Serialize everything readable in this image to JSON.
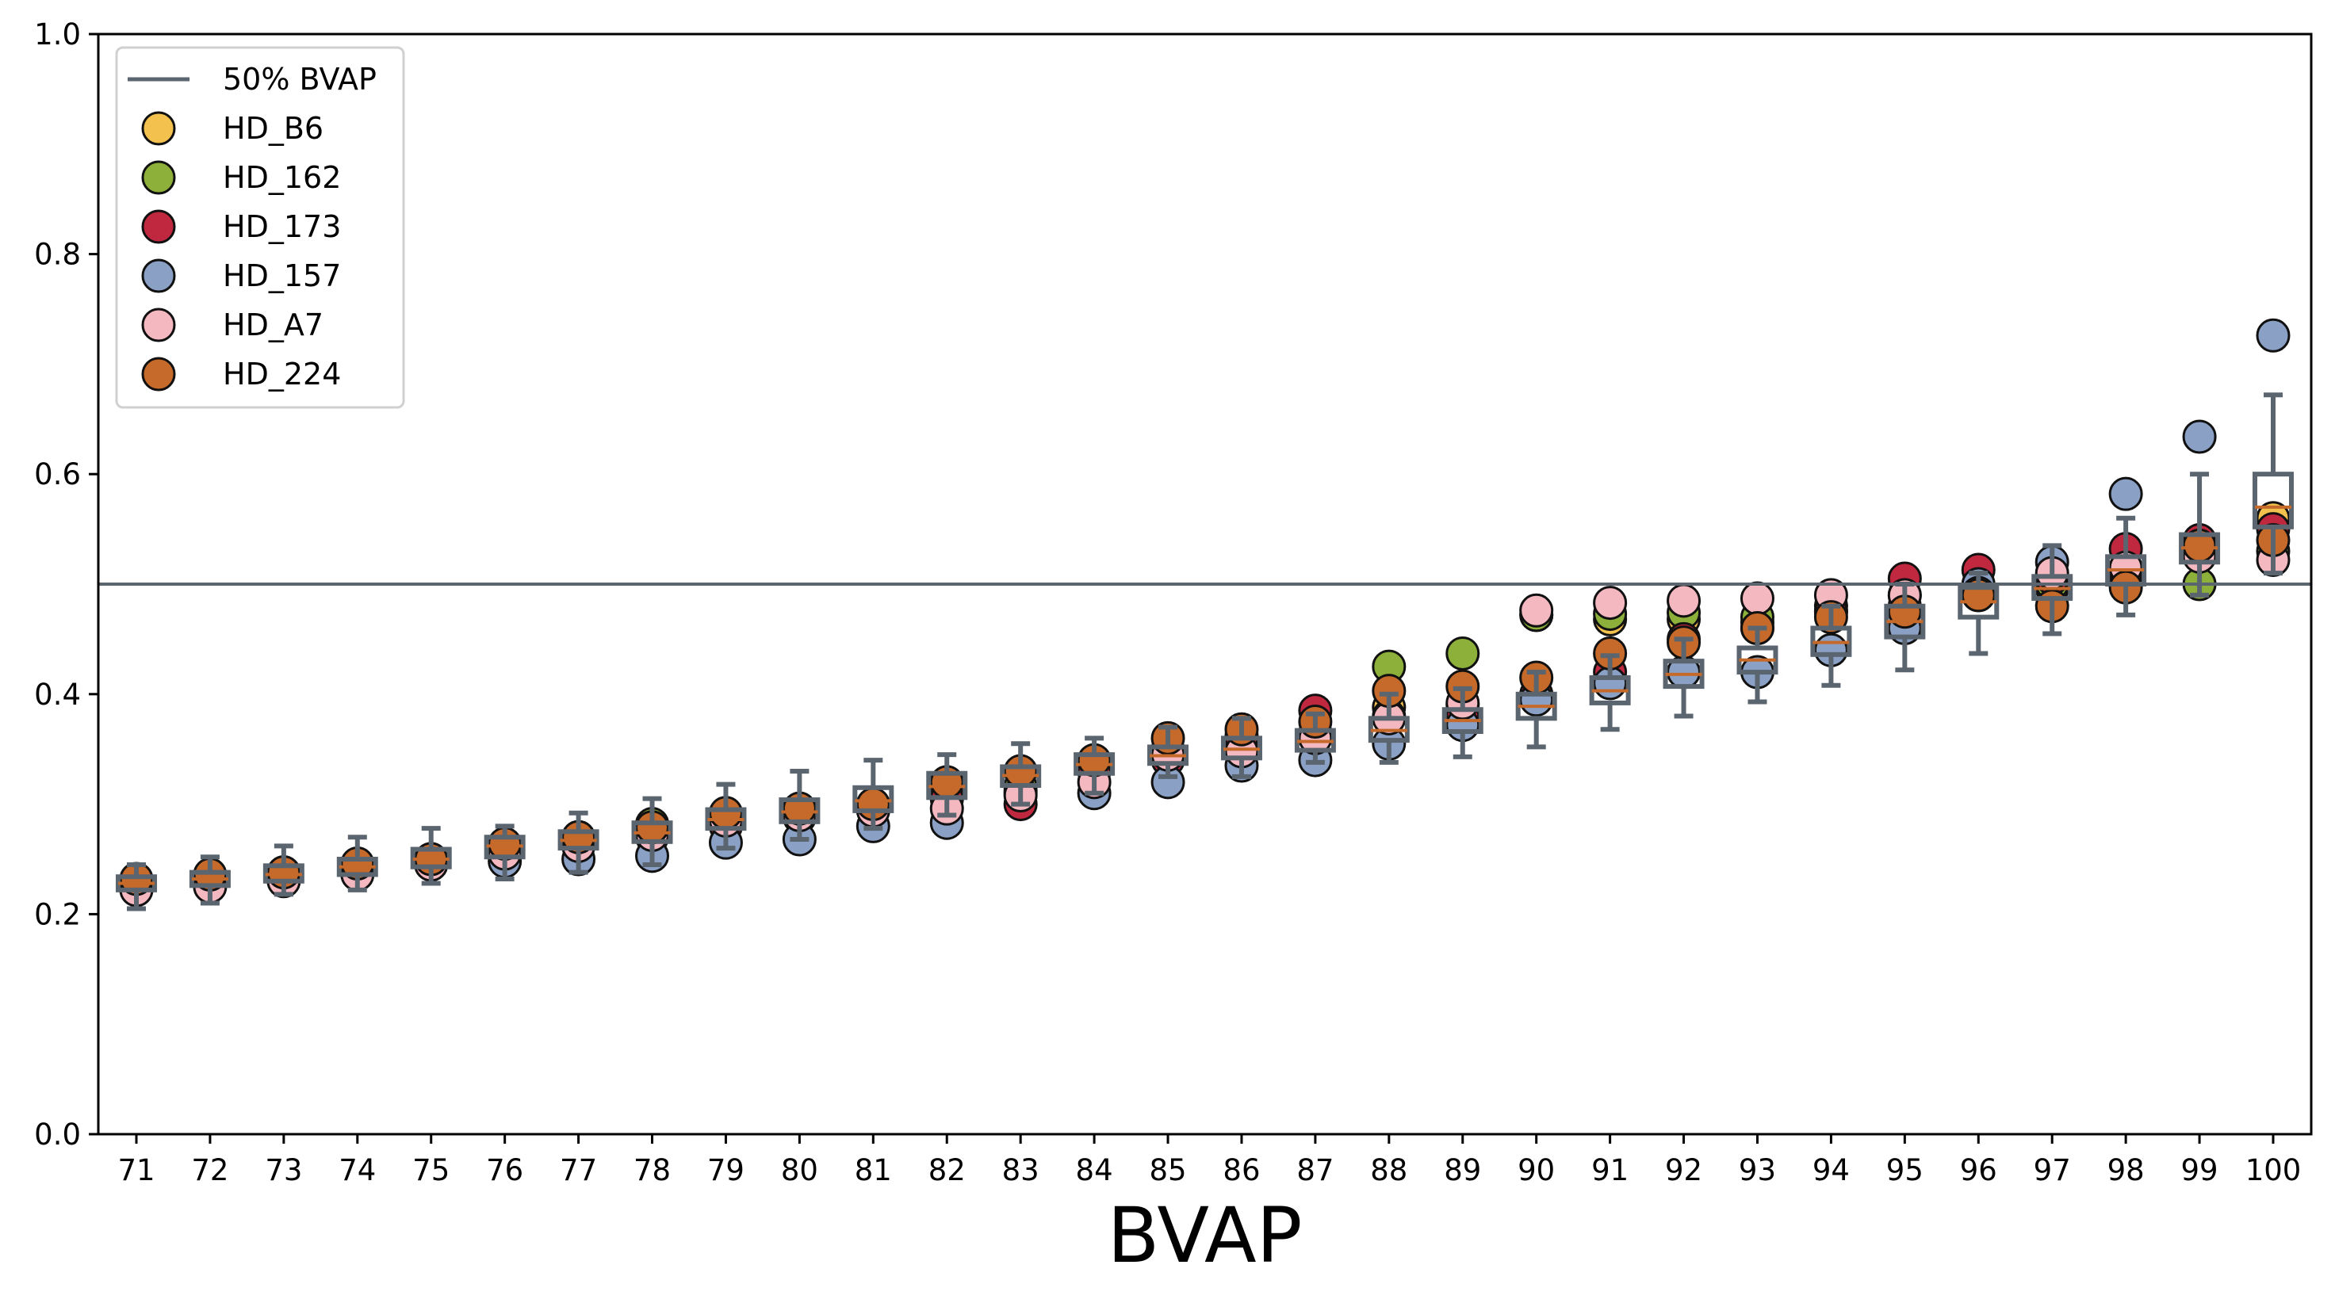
{
  "chart_data": {
    "type": "scatter",
    "title": "",
    "xlabel": "BVAP",
    "ylabel": "",
    "ylim": [
      0.0,
      1.0
    ],
    "yticks": [
      "0.0",
      "0.2",
      "0.4",
      "0.6",
      "0.8",
      "1.0"
    ],
    "categories": [
      "71",
      "72",
      "73",
      "74",
      "75",
      "76",
      "77",
      "78",
      "79",
      "80",
      "81",
      "82",
      "83",
      "84",
      "85",
      "86",
      "87",
      "88",
      "89",
      "90",
      "91",
      "92",
      "93",
      "94",
      "95",
      "96",
      "97",
      "98",
      "99",
      "100"
    ],
    "reference_line": {
      "label": "50% BVAP",
      "y": 0.5,
      "color": "#5b6570"
    },
    "legend_position": "upper-left",
    "grid": false,
    "series": [
      {
        "name": "HD_B6",
        "color": "#f2c14e",
        "values": [
          0.23,
          0.232,
          0.238,
          0.245,
          0.25,
          0.26,
          0.268,
          0.274,
          0.285,
          0.292,
          0.298,
          0.31,
          0.312,
          0.33,
          0.345,
          0.355,
          0.365,
          0.388,
          0.39,
          0.472,
          0.468,
          0.468,
          0.465,
          0.475,
          0.49,
          0.49,
          0.496,
          0.505,
          0.53,
          0.56
        ]
      },
      {
        "name": "HD_162",
        "color": "#8db03b",
        "values": [
          0.229,
          0.231,
          0.235,
          0.243,
          0.248,
          0.262,
          0.27,
          0.282,
          0.288,
          0.29,
          0.296,
          0.31,
          0.316,
          0.335,
          0.35,
          0.362,
          0.362,
          0.425,
          0.437,
          0.472,
          0.473,
          0.474,
          0.47,
          0.48,
          0.48,
          0.493,
          0.5,
          0.51,
          0.5,
          0.53
        ]
      },
      {
        "name": "HD_173",
        "color": "#c0283f",
        "values": [
          0.228,
          0.23,
          0.234,
          0.24,
          0.247,
          0.258,
          0.265,
          0.27,
          0.28,
          0.288,
          0.295,
          0.305,
          0.3,
          0.33,
          0.34,
          0.36,
          0.385,
          0.38,
          0.38,
          0.4,
          0.42,
          0.45,
          0.46,
          0.475,
          0.505,
          0.513,
          0.505,
          0.532,
          0.54,
          0.55
        ]
      },
      {
        "name": "HD_157",
        "color": "#8aa0c4",
        "values": [
          0.228,
          0.232,
          0.236,
          0.242,
          0.25,
          0.248,
          0.25,
          0.253,
          0.265,
          0.268,
          0.28,
          0.283,
          0.31,
          0.31,
          0.32,
          0.335,
          0.34,
          0.355,
          0.372,
          0.395,
          0.41,
          0.42,
          0.42,
          0.44,
          0.46,
          0.5,
          0.52,
          0.582,
          0.634,
          0.726
        ]
      },
      {
        "name": "HD_A7",
        "color": "#f4b8c0",
        "values": [
          0.222,
          0.225,
          0.23,
          0.236,
          0.245,
          0.255,
          0.262,
          0.272,
          0.285,
          0.29,
          0.294,
          0.296,
          0.308,
          0.32,
          0.345,
          0.348,
          0.36,
          0.378,
          0.392,
          0.476,
          0.483,
          0.485,
          0.487,
          0.49,
          0.49,
          0.492,
          0.51,
          0.515,
          0.525,
          0.522
        ]
      },
      {
        "name": "HD_224",
        "color": "#c56a2a",
        "values": [
          0.232,
          0.236,
          0.238,
          0.246,
          0.25,
          0.264,
          0.27,
          0.279,
          0.292,
          0.296,
          0.3,
          0.32,
          0.33,
          0.34,
          0.36,
          0.368,
          0.375,
          0.403,
          0.407,
          0.415,
          0.437,
          0.447,
          0.46,
          0.47,
          0.475,
          0.49,
          0.48,
          0.497,
          0.535,
          0.54
        ]
      }
    ],
    "boxplots": {
      "color": "#5b6570",
      "boxes": [
        {
          "whislo": 0.205,
          "q1": 0.222,
          "med": 0.228,
          "q3": 0.234,
          "whishi": 0.245
        },
        {
          "whislo": 0.21,
          "q1": 0.226,
          "med": 0.232,
          "q3": 0.238,
          "whishi": 0.252
        },
        {
          "whislo": 0.218,
          "q1": 0.23,
          "med": 0.236,
          "q3": 0.244,
          "whishi": 0.262
        },
        {
          "whislo": 0.222,
          "q1": 0.236,
          "med": 0.243,
          "q3": 0.25,
          "whishi": 0.27
        },
        {
          "whislo": 0.228,
          "q1": 0.243,
          "med": 0.25,
          "q3": 0.259,
          "whishi": 0.278
        },
        {
          "whislo": 0.232,
          "q1": 0.252,
          "med": 0.262,
          "q3": 0.27,
          "whishi": 0.28
        },
        {
          "whislo": 0.238,
          "q1": 0.26,
          "med": 0.267,
          "q3": 0.275,
          "whishi": 0.292
        },
        {
          "whislo": 0.245,
          "q1": 0.266,
          "med": 0.274,
          "q3": 0.283,
          "whishi": 0.305
        },
        {
          "whislo": 0.26,
          "q1": 0.278,
          "med": 0.286,
          "q3": 0.295,
          "whishi": 0.318
        },
        {
          "whislo": 0.268,
          "q1": 0.284,
          "med": 0.293,
          "q3": 0.304,
          "whishi": 0.33
        },
        {
          "whislo": 0.278,
          "q1": 0.294,
          "med": 0.303,
          "q3": 0.315,
          "whishi": 0.34
        },
        {
          "whislo": 0.29,
          "q1": 0.306,
          "med": 0.316,
          "q3": 0.328,
          "whishi": 0.345
        },
        {
          "whislo": 0.3,
          "q1": 0.317,
          "med": 0.326,
          "q3": 0.334,
          "whishi": 0.355
        },
        {
          "whislo": 0.31,
          "q1": 0.328,
          "med": 0.336,
          "q3": 0.345,
          "whishi": 0.36
        },
        {
          "whislo": 0.325,
          "q1": 0.337,
          "med": 0.344,
          "q3": 0.352,
          "whishi": 0.37
        },
        {
          "whislo": 0.325,
          "q1": 0.342,
          "med": 0.35,
          "q3": 0.36,
          "whishi": 0.378
        },
        {
          "whislo": 0.338,
          "q1": 0.349,
          "med": 0.357,
          "q3": 0.367,
          "whishi": 0.382
        },
        {
          "whislo": 0.338,
          "q1": 0.358,
          "med": 0.367,
          "q3": 0.378,
          "whishi": 0.4
        },
        {
          "whislo": 0.343,
          "q1": 0.366,
          "med": 0.376,
          "q3": 0.386,
          "whishi": 0.405
        },
        {
          "whislo": 0.352,
          "q1": 0.378,
          "med": 0.389,
          "q3": 0.4,
          "whishi": 0.42
        },
        {
          "whislo": 0.368,
          "q1": 0.392,
          "med": 0.403,
          "q3": 0.415,
          "whishi": 0.435
        },
        {
          "whislo": 0.38,
          "q1": 0.407,
          "med": 0.418,
          "q3": 0.43,
          "whishi": 0.45
        },
        {
          "whislo": 0.393,
          "q1": 0.42,
          "med": 0.431,
          "q3": 0.442,
          "whishi": 0.46
        },
        {
          "whislo": 0.408,
          "q1": 0.436,
          "med": 0.447,
          "q3": 0.46,
          "whishi": 0.48
        },
        {
          "whislo": 0.422,
          "q1": 0.452,
          "med": 0.466,
          "q3": 0.48,
          "whishi": 0.5
        },
        {
          "whislo": 0.437,
          "q1": 0.47,
          "med": 0.484,
          "q3": 0.497,
          "whishi": 0.51
        },
        {
          "whislo": 0.455,
          "q1": 0.487,
          "med": 0.496,
          "q3": 0.507,
          "whishi": 0.535
        },
        {
          "whislo": 0.472,
          "q1": 0.5,
          "med": 0.513,
          "q3": 0.525,
          "whishi": 0.56
        },
        {
          "whislo": 0.49,
          "q1": 0.52,
          "med": 0.533,
          "q3": 0.545,
          "whishi": 0.6
        },
        {
          "whislo": 0.51,
          "q1": 0.552,
          "med": 0.57,
          "q3": 0.6,
          "whishi": 0.672
        }
      ]
    }
  }
}
